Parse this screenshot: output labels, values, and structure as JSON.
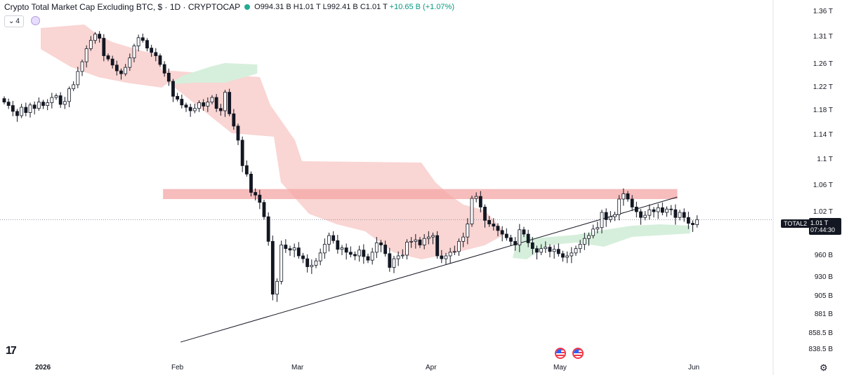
{
  "header": {
    "title": "Crypto Total Market Cap Excluding BTC, $ · 1D · CRYPTOCAP",
    "open_label": "O",
    "open": "994.31 B",
    "high_label": "H",
    "high": "1.01 T",
    "low_label": "L",
    "low": "992.41 B",
    "close_label": "C",
    "close": "1.01 T",
    "change": "+10.65 B (+1.07%)"
  },
  "legend_toggle": {
    "count": "4"
  },
  "price_tag": {
    "symbol": "TOTAL2",
    "price": "1.01 T",
    "countdown": "07:44:30"
  },
  "y_axis": [
    "1.36 T",
    "1.31 T",
    "1.26 T",
    "1.22 T",
    "1.18 T",
    "1.14 T",
    "1.1 T",
    "1.06 T",
    "1.02 T",
    "960 B",
    "930 B",
    "905 B",
    "881 B",
    "858.5 B",
    "838.5 B"
  ],
  "x_axis": {
    "year": "2026",
    "feb": "Feb",
    "mar": "Mar",
    "apr": "Apr",
    "may": "May",
    "jun": "Jun"
  },
  "colors": {
    "up": "#ffffff",
    "down": "#131722",
    "cloud_bear": "#f9d5d3",
    "cloud_bull": "#d6efdc",
    "resistance_zone": "#f4a5a6",
    "trendline": "#131722",
    "change": "#089981"
  },
  "chart_data": {
    "type": "candlestick",
    "title": "Crypto Total Market Cap Excluding BTC, $ · 1D · CRYPTOCAP",
    "ylabel": "",
    "xlabel": "",
    "ylim": [
      838.5,
      1360
    ],
    "y_unit": "B",
    "x_range": [
      "2026-01-01",
      "2026-06-08"
    ],
    "grid": false,
    "candles_close": [
      1195,
      1189,
      1179,
      1172,
      1186,
      1177,
      1190,
      1184,
      1195,
      1189,
      1194,
      1203,
      1206,
      1191,
      1196,
      1218,
      1225,
      1248,
      1265,
      1289,
      1304,
      1316,
      1308,
      1276,
      1270,
      1259,
      1249,
      1244,
      1255,
      1272,
      1294,
      1309,
      1304,
      1290,
      1282,
      1276,
      1260,
      1245,
      1231,
      1205,
      1200,
      1190,
      1186,
      1180,
      1184,
      1194,
      1188,
      1195,
      1203,
      1184,
      1180,
      1212,
      1175,
      1155,
      1132,
      1091,
      1078,
      1050,
      1046,
      1035,
      1014,
      980,
      908,
      925,
      975,
      970,
      968,
      971,
      960,
      956,
      945,
      947,
      953,
      964,
      976,
      988,
      981,
      969,
      971,
      965,
      962,
      960,
      968,
      959,
      954,
      965,
      978,
      975,
      963,
      944,
      956,
      960,
      961,
      979,
      980,
      982,
      975,
      984,
      986,
      988,
      960,
      956,
      960,
      965,
      966,
      980,
      986,
      1004,
      1041,
      1044,
      1028,
      1009,
      1004,
      1001,
      995,
      990,
      985,
      980,
      975,
      996,
      990,
      978,
      970,
      965,
      970,
      972,
      966,
      969,
      963,
      958,
      960,
      964,
      970,
      976,
      984,
      988,
      997,
      999,
      1020,
      1010,
      1014,
      1017,
      1040,
      1048,
      1040,
      1028,
      1021,
      1013,
      1016,
      1024,
      1021,
      1027,
      1020,
      1025,
      1024,
      1013,
      1020,
      1013,
      1005,
      1003,
      1010
    ],
    "cloud_bearish_span": [
      "2026-01-01",
      "2026-04-18"
    ],
    "cloud_bullish_spans": [
      [
        "2026-01-31",
        "2026-02-20"
      ],
      [
        "2026-04-21",
        "2026-05-31"
      ]
    ],
    "resistance_zone": {
      "low": 1040,
      "high": 1055,
      "from": "2026-02-01",
      "to": "2026-05-28"
    },
    "trendline": {
      "from": {
        "date": "2026-02-01",
        "value": 848
      },
      "to": {
        "date": "2026-05-28",
        "value": 1043
      }
    },
    "last_price": 1010
  }
}
